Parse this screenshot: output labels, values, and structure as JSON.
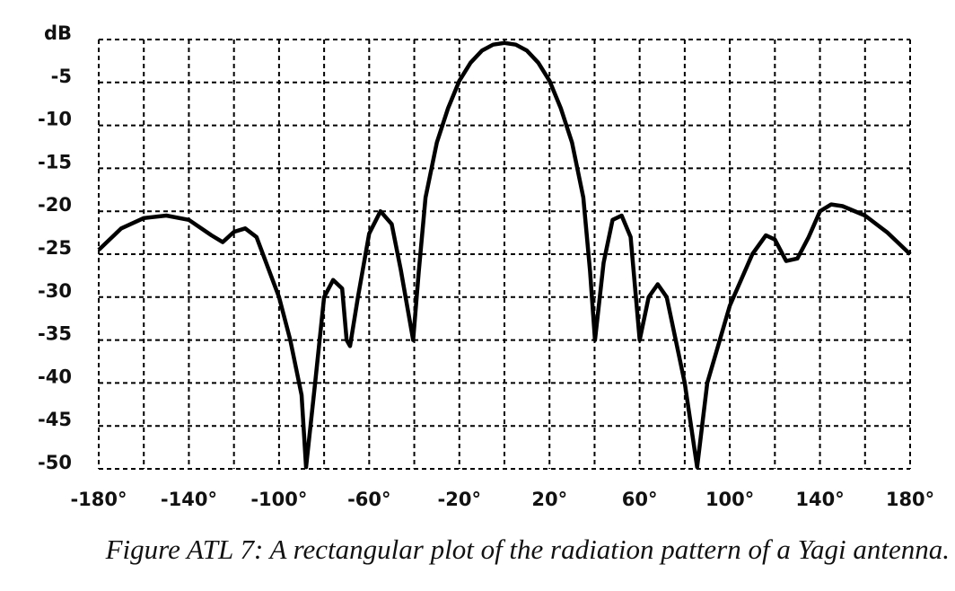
{
  "chart_data": {
    "type": "line",
    "caption": "Figure ATL 7: A rectangular plot of the radiation pattern of a Yagi antenna.",
    "x": [
      -180,
      -170,
      -160,
      -150,
      -140,
      -130,
      -125,
      -120,
      -115,
      -110,
      -100,
      -95,
      -90,
      -88,
      -84,
      -80,
      -76,
      -72,
      -70,
      -68.5,
      -65,
      -60,
      -55,
      -50,
      -46,
      -40.5,
      -38,
      -35,
      -30,
      -25,
      -20,
      -15,
      -10,
      -5,
      0,
      5,
      10,
      15,
      20,
      25,
      30,
      35,
      38,
      40.2,
      44,
      48,
      52,
      56,
      60,
      64,
      68,
      72,
      80,
      85.5,
      90,
      100,
      110,
      116,
      120,
      125,
      130,
      135,
      140,
      145,
      150,
      160,
      170,
      180
    ],
    "series": [
      {
        "color": "#000000",
        "values": [
          -24.5,
          -22,
          -20.8,
          -20.5,
          -21,
          -22.8,
          -23.6,
          -22.4,
          -22,
          -23,
          -30,
          -35,
          -41.4,
          -49.8,
          -40,
          -30,
          -28,
          -29,
          -35,
          -35.7,
          -30,
          -22.6,
          -20,
          -21.5,
          -26.8,
          -35,
          -27,
          -18.4,
          -12,
          -8,
          -4.8,
          -2.7,
          -1.3,
          -0.6,
          -0.4,
          -0.6,
          -1.3,
          -2.7,
          -4.8,
          -8,
          -12,
          -18.4,
          -27,
          -35,
          -26,
          -21,
          -20.5,
          -23,
          -35,
          -30,
          -28.5,
          -30,
          -40,
          -49.8,
          -40,
          -31,
          -25,
          -22.8,
          -23.3,
          -25.8,
          -25.5,
          -23,
          -20,
          -19.2,
          -19.4,
          -20.5,
          -22.5,
          -25
        ]
      }
    ],
    "xlim": [
      -180,
      180
    ],
    "xticks": [
      {
        "value": -180,
        "label": "-180°"
      },
      {
        "value": -140,
        "label": "-140°"
      },
      {
        "value": -100,
        "label": "-100°"
      },
      {
        "value": -60,
        "label": "-60°"
      },
      {
        "value": -20,
        "label": "-20°"
      },
      {
        "value": 20,
        "label": "20°"
      },
      {
        "value": 60,
        "label": "60°"
      },
      {
        "value": 100,
        "label": "100°"
      },
      {
        "value": 140,
        "label": "140°"
      },
      {
        "value": 180,
        "label": "180°"
      }
    ],
    "xminor": [
      -160,
      -120,
      -80,
      -40,
      0,
      40,
      80,
      120,
      160
    ],
    "ylim": [
      -50,
      0
    ],
    "yticks": [
      {
        "value": 0,
        "label": "dB"
      },
      -5,
      -10,
      -15,
      -20,
      -25,
      -30,
      -35,
      -40,
      -45,
      -50
    ],
    "grid": true
  }
}
